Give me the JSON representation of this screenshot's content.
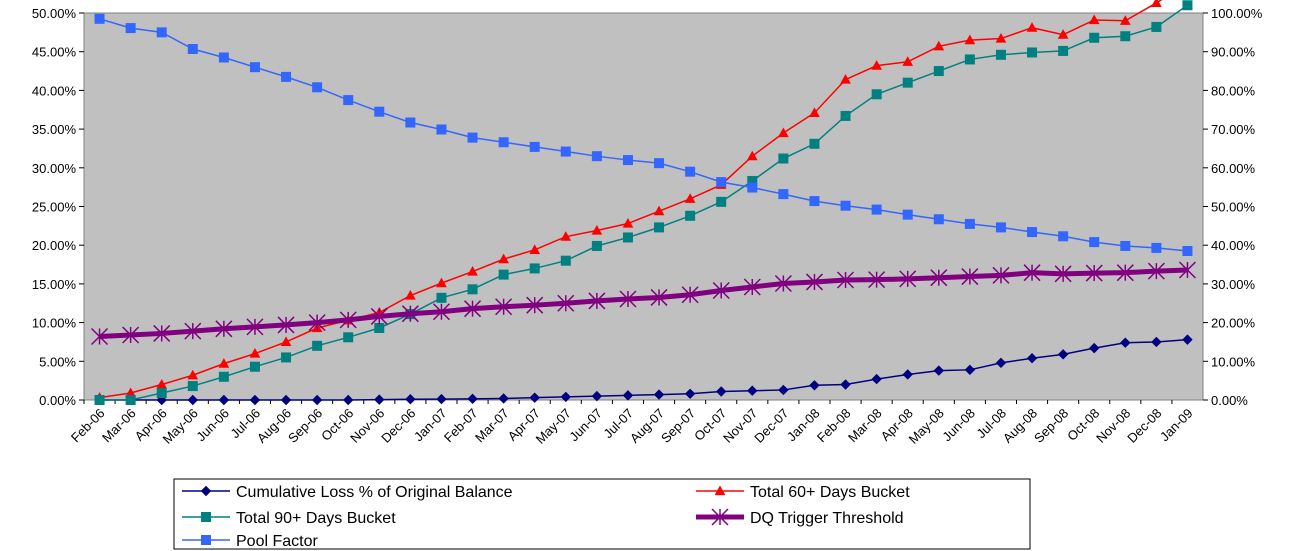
{
  "chart_data": {
    "type": "line",
    "categories": [
      "Feb-06",
      "Mar-06",
      "Apr-06",
      "May-06",
      "Jun-06",
      "Jul-06",
      "Aug-06",
      "Sep-06",
      "Oct-06",
      "Nov-06",
      "Dec-06",
      "Jan-07",
      "Feb-07",
      "Mar-07",
      "Apr-07",
      "May-07",
      "Jun-07",
      "Jul-07",
      "Aug-07",
      "Sep-07",
      "Oct-07",
      "Nov-07",
      "Dec-07",
      "Jan-08",
      "Feb-08",
      "Mar-08",
      "Apr-08",
      "May-08",
      "Jun-08",
      "Jul-08",
      "Aug-08",
      "Sep-08",
      "Oct-08",
      "Nov-08",
      "Dec-08",
      "Jan-09"
    ],
    "y_left": {
      "ylim": [
        0,
        50
      ],
      "ticks": [
        "0.00%",
        "5.00%",
        "10.00%",
        "15.00%",
        "20.00%",
        "25.00%",
        "30.00%",
        "35.00%",
        "40.00%",
        "45.00%",
        "50.00%"
      ]
    },
    "y_right": {
      "ylim": [
        0,
        100
      ],
      "ticks": [
        "0.00%",
        "10.00%",
        "20.00%",
        "30.00%",
        "40.00%",
        "50.00%",
        "60.00%",
        "70.00%",
        "80.00%",
        "90.00%",
        "100.00%"
      ]
    },
    "grid": false,
    "plot_background": "#c0c0c0",
    "legend_position": "bottom",
    "series": [
      {
        "name": "Cumulative Loss % of Original Balance",
        "axis": "left",
        "color": "#000080",
        "marker": "diamond",
        "width": 1.5,
        "values": [
          0,
          0,
          0,
          0,
          0,
          0,
          0,
          0,
          0,
          0.05,
          0.1,
          0.12,
          0.15,
          0.2,
          0.3,
          0.4,
          0.5,
          0.6,
          0.7,
          0.8,
          1.1,
          1.2,
          1.3,
          1.9,
          2.0,
          2.7,
          3.3,
          3.8,
          3.9,
          4.8,
          5.4,
          5.9,
          6.7,
          7.4,
          7.5,
          7.8
        ]
      },
      {
        "name": "Total 60+ Days Bucket",
        "axis": "left",
        "color": "#ff0000",
        "marker": "triangle",
        "width": 1.5,
        "values": [
          0.3,
          0.9,
          2.0,
          3.2,
          4.7,
          6.0,
          7.5,
          9.3,
          10.3,
          11.3,
          13.5,
          15.1,
          16.6,
          18.2,
          19.4,
          21.1,
          21.9,
          22.8,
          24.4,
          26.0,
          27.8,
          31.5,
          34.5,
          37.1,
          41.4,
          43.2,
          43.7,
          45.7,
          46.5,
          46.7,
          48.1,
          47.2,
          49.1,
          49.0,
          51.3,
          53.8
        ]
      },
      {
        "name": "Total 90+ Days Bucket",
        "axis": "left",
        "color": "#008080",
        "marker": "square",
        "width": 1.5,
        "values": [
          0,
          0,
          0.9,
          1.8,
          3.0,
          4.3,
          5.5,
          7.0,
          8.1,
          9.3,
          11.1,
          13.2,
          14.3,
          16.2,
          17.0,
          18.0,
          19.9,
          21.0,
          22.3,
          23.8,
          25.6,
          28.3,
          31.2,
          33.1,
          36.7,
          39.5,
          41.0,
          42.5,
          44.0,
          44.6,
          44.9,
          45.1,
          46.8,
          47.0,
          48.2,
          51.0
        ]
      },
      {
        "name": "DQ Trigger Threshold",
        "axis": "right",
        "color": "#800080",
        "marker": "asterisk",
        "width": 5,
        "values": [
          16.4,
          16.8,
          17.2,
          17.8,
          18.4,
          18.9,
          19.4,
          20.0,
          20.7,
          21.6,
          22.3,
          22.8,
          23.6,
          24.1,
          24.5,
          25.0,
          25.6,
          26.1,
          26.5,
          27.2,
          28.3,
          29.2,
          30.1,
          30.5,
          31.0,
          31.1,
          31.3,
          31.6,
          31.9,
          32.2,
          32.9,
          32.6,
          32.8,
          32.9,
          33.3,
          33.6
        ]
      },
      {
        "name": "Pool Factor",
        "axis": "right",
        "color": "#3366ff",
        "marker": "square",
        "width": 1.5,
        "values": [
          98.5,
          96.1,
          95.0,
          90.7,
          88.5,
          86.0,
          83.5,
          80.8,
          77.5,
          74.5,
          71.7,
          69.9,
          67.8,
          66.6,
          65.4,
          64.2,
          63.0,
          62.0,
          61.2,
          59.0,
          56.3,
          54.9,
          53.2,
          51.4,
          50.2,
          49.2,
          47.9,
          46.7,
          45.5,
          44.6,
          43.4,
          42.3,
          40.8,
          39.8,
          39.3,
          38.5
        ]
      }
    ]
  }
}
